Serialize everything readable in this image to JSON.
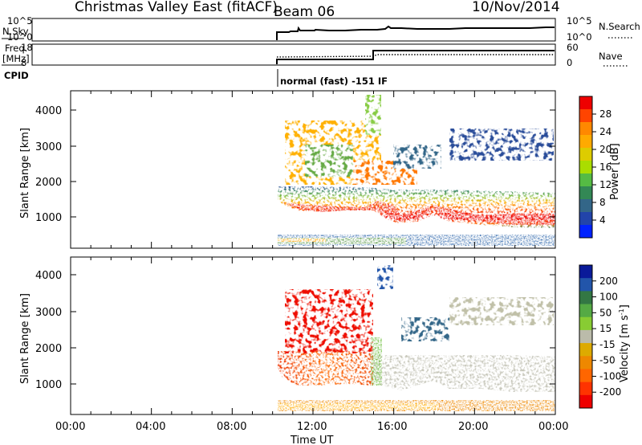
{
  "title": {
    "station": "Christmas Valley East (fitACF)",
    "beam": "Beam 06",
    "date": "10/Nov/2014"
  },
  "header": {
    "nsky_label": "N.Sky",
    "nsky_ticks": [
      "10^5",
      "10^0"
    ],
    "nsearch_label": "N.Search",
    "nsearch_ticks": [
      "10^5",
      "10^0"
    ],
    "freq_label_1": "Freq.",
    "freq_label_2": "[MHz]",
    "freq_ticks": [
      "18",
      "8"
    ],
    "nave_label": "Nave",
    "nave_ticks": [
      "60",
      "0"
    ],
    "cpid_label": "CPID",
    "cpid_text": "normal (fast) -151 IF"
  },
  "axes": {
    "ylabel": "Slant Range [km]",
    "xlabel": "Time UT",
    "yticks": [
      "4000",
      "3000",
      "2000",
      "1000"
    ],
    "xticks": [
      "00:00",
      "04:00",
      "08:00",
      "12:00",
      "16:00",
      "20:00",
      "00:00"
    ]
  },
  "colorbars": {
    "power": {
      "label": "Power [dB]",
      "ticks": [
        "28",
        "24",
        "20",
        "16",
        "12",
        "8",
        "4"
      ],
      "colors": [
        "#ee0000",
        "#ff4400",
        "#ff8800",
        "#ffaa00",
        "#ddcc00",
        "#aadd00",
        "#55bb44",
        "#338855",
        "#336688",
        "#2244aa",
        "#0022ff"
      ]
    },
    "velocity": {
      "label": "Velocity [m s",
      "label_sup": "-1",
      "label_end": "]",
      "ticks": [
        "200",
        "100",
        "50",
        "15",
        "-15",
        "-50",
        "-100",
        "-200"
      ],
      "colors": [
        "#0a1a99",
        "#2255aa",
        "#337744",
        "#55aa44",
        "#88cc33",
        "#bbbbaa",
        "#ddaa00",
        "#ee8800",
        "#ff6600",
        "#ff3300",
        "#ee0000"
      ]
    }
  },
  "chart_data": [
    {
      "type": "heatmap",
      "title": "Power",
      "xlabel": "Time UT",
      "ylabel": "Slant Range [km]",
      "xlim_hours": [
        0,
        24
      ],
      "ylim": [
        180,
        4500
      ],
      "colorbar_label": "Power [dB]",
      "colorbar_range": [
        0,
        32
      ],
      "data_start_hour": 10.0
    },
    {
      "type": "heatmap",
      "title": "Velocity",
      "xlabel": "Time UT",
      "ylabel": "Slant Range [km]",
      "xlim_hours": [
        0,
        24
      ],
      "ylim": [
        180,
        4500
      ],
      "colorbar_label": "Velocity [m s-1]",
      "colorbar_range": [
        -200,
        200
      ],
      "data_start_hour": 10.0
    },
    {
      "type": "line",
      "title": "N.Sky / N.Search",
      "series": [
        {
          "name": "N.Sky",
          "x": [
            10.0,
            12,
            14,
            15,
            16,
            18,
            20,
            22,
            24
          ],
          "y": [
            3.0,
            3.1,
            3.2,
            3.3,
            3.6,
            3.8,
            3.8,
            4.0,
            4.1
          ]
        }
      ]
    },
    {
      "type": "line",
      "title": "Freq. / Nave",
      "series": [
        {
          "name": "Freq.",
          "x": [
            10.0,
            15.0,
            15.0,
            24
          ],
          "y": [
            10.5,
            10.5,
            16.0,
            16.0
          ]
        },
        {
          "name": "Nave",
          "x": [
            10.0,
            12,
            14,
            16,
            18,
            20,
            22,
            24
          ],
          "y": [
            25,
            26,
            27,
            30,
            30,
            30,
            31,
            31
          ]
        }
      ]
    }
  ]
}
